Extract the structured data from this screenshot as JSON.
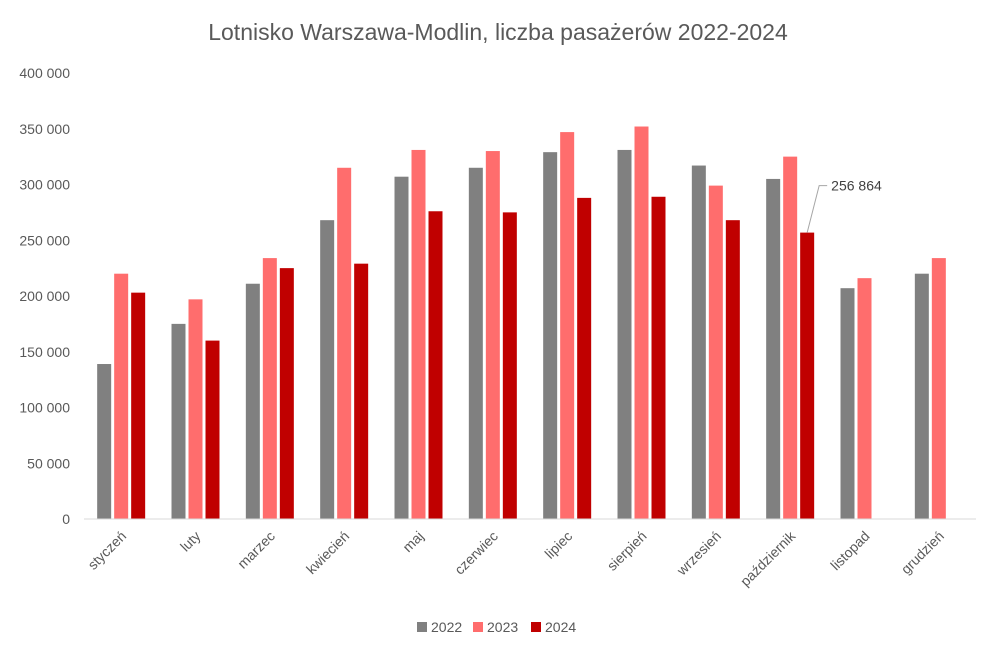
{
  "chart_data": {
    "type": "bar",
    "title": "Lotnisko Warszawa-Modlin, liczba pasażerów 2022-2024",
    "xlabel": "",
    "ylabel": "",
    "ylim": [
      0,
      400000
    ],
    "yticks": [
      0,
      50000,
      100000,
      150000,
      200000,
      250000,
      300000,
      350000,
      400000
    ],
    "ytick_labels": [
      "0",
      "50 000",
      "100 000",
      "150 000",
      "200 000",
      "250 000",
      "300 000",
      "350 000",
      "400 000"
    ],
    "grid": false,
    "legend_position": "bottom",
    "categories": [
      "styczeń",
      "luty",
      "marzec",
      "kwiecień",
      "maj",
      "czerwiec",
      "lipiec",
      "sierpień",
      "wrzesień",
      "październik",
      "listopad",
      "grudzień"
    ],
    "series": [
      {
        "name": "2022",
        "color": "#808080",
        "values": [
          139000,
          175000,
          211000,
          268000,
          307000,
          315000,
          329000,
          331000,
          317000,
          305000,
          207000,
          220000
        ]
      },
      {
        "name": "2023",
        "color": "#FF6D6D",
        "values": [
          220000,
          197000,
          234000,
          315000,
          331000,
          330000,
          347000,
          352000,
          299000,
          325000,
          216000,
          234000
        ]
      },
      {
        "name": "2024",
        "color": "#C00000",
        "values": [
          203000,
          160000,
          225000,
          229000,
          276000,
          275000,
          288000,
          289000,
          268000,
          256864,
          null,
          null
        ]
      }
    ],
    "annotations": [
      {
        "text": "256 864",
        "series": "2024",
        "category": "październik"
      }
    ]
  }
}
